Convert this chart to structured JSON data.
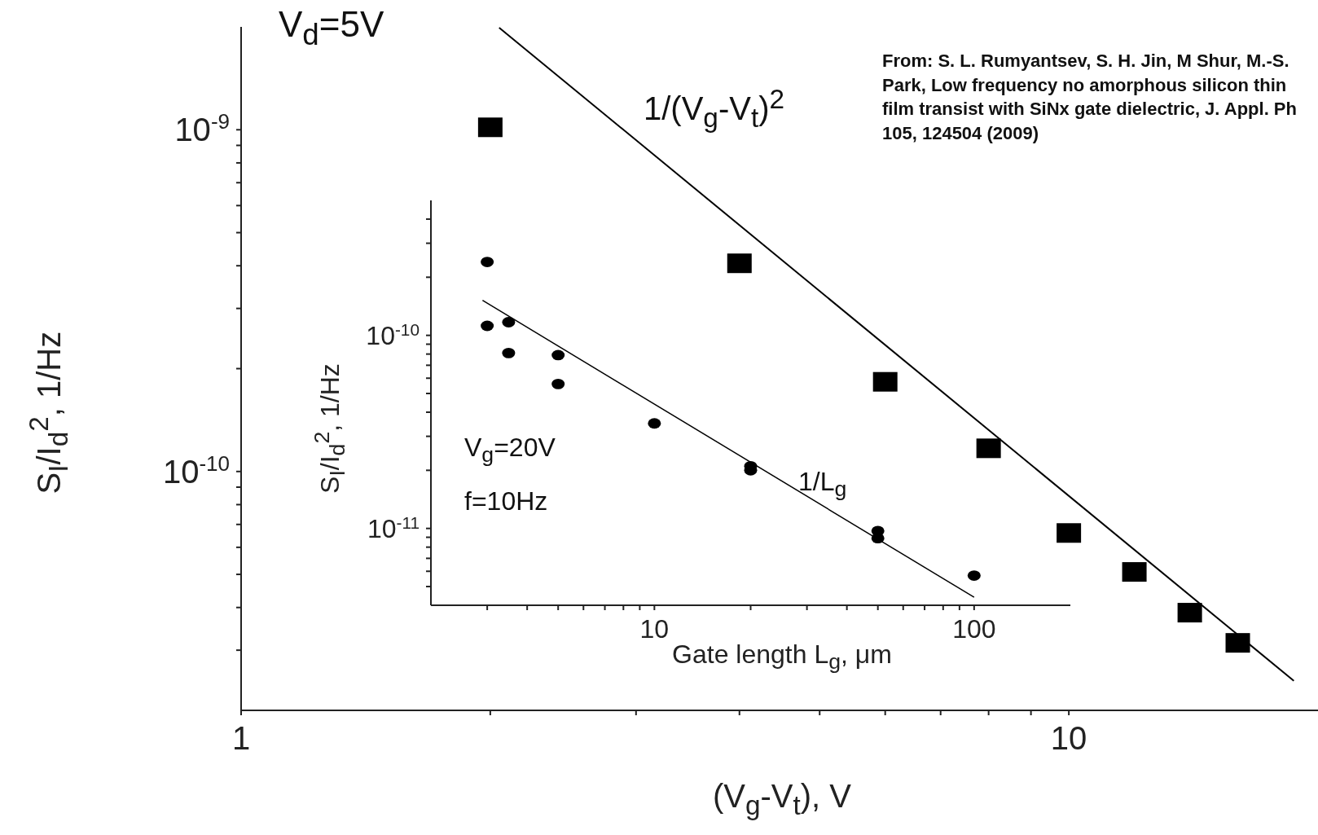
{
  "chart_data": [
    {
      "type": "scatter",
      "xlabel": "(V$_{g}$-V$_{t}$), V",
      "ylabel": "S$_{I}$/I$_{d}$$^{2}$, 1/Hz",
      "log": "xy",
      "xlim": [
        1,
        20
      ],
      "ylim": [
        2e-11,
        2e-09
      ],
      "xticks": [
        1,
        {
          "value": 2,
          "label": null
        },
        {
          "value": 3,
          "label": null
        },
        {
          "value": 4,
          "label": null
        },
        {
          "value": 5,
          "label": null
        },
        {
          "value": 6,
          "label": null
        },
        {
          "value": 7,
          "label": null
        },
        {
          "value": 8,
          "label": null
        },
        {
          "value": 9,
          "label": null
        },
        10
      ],
      "yticks": [
        {
          "value": 3e-11,
          "label": null
        },
        {
          "value": 4e-11,
          "label": null
        },
        {
          "value": 5e-11,
          "label": null
        },
        {
          "value": 6e-11,
          "label": null
        },
        {
          "value": 7e-11,
          "label": null
        },
        {
          "value": 8e-11,
          "label": null
        },
        {
          "value": 9e-11,
          "label": null
        },
        {
          "value": 1e-10,
          "label": "10$^{-10}$"
        },
        {
          "value": 2e-10,
          "label": null
        },
        {
          "value": 3e-10,
          "label": null
        },
        {
          "value": 4e-10,
          "label": null
        },
        {
          "value": 5e-10,
          "label": null
        },
        {
          "value": 6e-10,
          "label": null
        },
        {
          "value": 7e-10,
          "label": null
        },
        {
          "value": 8e-10,
          "label": null
        },
        {
          "value": 9e-10,
          "label": null
        },
        {
          "value": 1e-09,
          "label": "10$^{-9}$"
        }
      ],
      "series": [
        {
          "type": "scatter",
          "marker": "square",
          "color": "#000000",
          "x": [
            2,
            4,
            6,
            8,
            10,
            12,
            14,
            16
          ],
          "values": [
            1e-09,
            4e-10,
            1.8e-10,
            1.15e-10,
            6.5e-11,
            5e-11,
            3.8e-11,
            3.1e-11
          ]
        },
        {
          "type": "line",
          "line_style": "solid",
          "color": "#000000",
          "x": [
            2.05,
            18.7
          ],
          "values": [
            1.99e-09,
            2.44e-11
          ]
        }
      ],
      "annotations": [
        "V$_{d}$=5V",
        "1/(V$_{g}$-V$_{t}$)$^{2}$",
        "From: S. L. Rumyantsev, S. H. Jin, M Shur, M.-S. Park, Low frequency no amorphous silicon thin film transist with SiNx gate dielectric, J. Appl. Ph 105, 124504 (2009)"
      ]
    },
    {
      "type": "scatter",
      "xlabel": "Gate length L$_{g}$, μm",
      "ylabel": "S$_{I}$/I$_{d}$$^{2}$, 1/Hz",
      "log": "xy",
      "xlim": [
        2,
        200
      ],
      "ylim": [
        4e-12,
        5e-10
      ],
      "xticks": [
        {
          "value": 3,
          "label": null
        },
        {
          "value": 4,
          "label": null
        },
        {
          "value": 5,
          "label": null
        },
        {
          "value": 6,
          "label": null
        },
        {
          "value": 7,
          "label": null
        },
        {
          "value": 8,
          "label": null
        },
        {
          "value": 9,
          "label": null
        },
        10,
        {
          "value": 20,
          "label": null
        },
        {
          "value": 30,
          "label": null
        },
        {
          "value": 40,
          "label": null
        },
        {
          "value": 50,
          "label": null
        },
        {
          "value": 60,
          "label": null
        },
        {
          "value": 70,
          "label": null
        },
        {
          "value": 80,
          "label": null
        },
        {
          "value": 90,
          "label": null
        },
        100
      ],
      "yticks": [
        {
          "value": 5e-12,
          "label": null
        },
        {
          "value": 6e-12,
          "label": null
        },
        {
          "value": 7e-12,
          "label": null
        },
        {
          "value": 8e-12,
          "label": null
        },
        {
          "value": 9e-12,
          "label": null
        },
        {
          "value": 1e-11,
          "label": "10$^{-11}$"
        },
        {
          "value": 2e-11,
          "label": null
        },
        {
          "value": 3e-11,
          "label": null
        },
        {
          "value": 4e-11,
          "label": null
        },
        {
          "value": 5e-11,
          "label": null
        },
        {
          "value": 6e-11,
          "label": null
        },
        {
          "value": 7e-11,
          "label": null
        },
        {
          "value": 8e-11,
          "label": null
        },
        {
          "value": 9e-11,
          "label": null
        },
        {
          "value": 1e-10,
          "label": "10$^{-10}$"
        },
        {
          "value": 2e-10,
          "label": null
        },
        {
          "value": 3e-10,
          "label": null
        },
        {
          "value": 4e-10,
          "label": null
        }
      ],
      "series": [
        {
          "type": "scatter",
          "marker": "circle",
          "color": "#000000",
          "x": [
            3,
            3,
            3.5,
            3.5,
            5,
            5,
            10,
            20,
            20,
            50,
            50,
            100
          ],
          "values": [
            2.4e-10,
            1.12e-10,
            1.17e-10,
            8.1e-11,
            7.9e-11,
            5.6e-11,
            3.5e-11,
            2.1e-11,
            2e-11,
            9.7e-12,
            8.9e-12,
            5.7e-12
          ]
        },
        {
          "type": "line",
          "line_style": "solid",
          "color": "#000000",
          "x": [
            2.9,
            100
          ],
          "values": [
            1.52e-10,
            4.4e-12
          ]
        }
      ],
      "annotations": [
        "V$_{g}$=20V",
        "f=10Hz",
        "1/L$_{g}$"
      ]
    }
  ]
}
